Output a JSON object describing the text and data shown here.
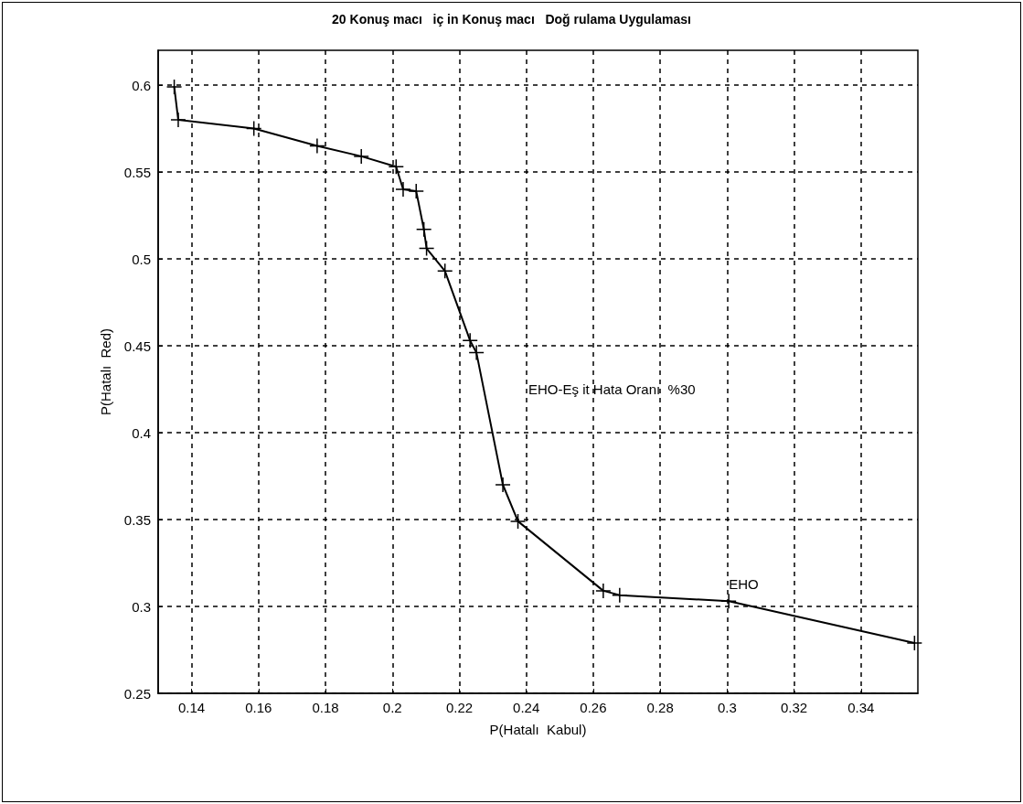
{
  "chart_data": {
    "type": "line",
    "title": "20 Konuş macı   iç in Konuş macı   Doğ rulama Uygulaması",
    "xlabel": "P(Hatalı  Kabul)",
    "ylabel": "P(Hatalı  Red)",
    "x": [
      0.1348,
      0.136,
      0.1586,
      0.1775,
      0.1907,
      0.2011,
      0.2032,
      0.2071,
      0.2094,
      0.2102,
      0.2157,
      0.2232,
      0.2251,
      0.233,
      0.2375,
      0.263,
      0.2679,
      0.3005,
      0.356
    ],
    "series": [
      {
        "color": "#000000",
        "values": [
          0.599,
          0.58,
          0.575,
          0.565,
          0.559,
          0.553,
          0.54,
          0.539,
          0.517,
          0.506,
          0.493,
          0.453,
          0.446,
          0.37,
          0.349,
          0.309,
          0.3065,
          0.303,
          0.279
        ]
      }
    ],
    "xlim": [
      0.13,
      0.357
    ],
    "ylim": [
      0.25,
      0.62
    ],
    "xticks": [
      0.14,
      0.16,
      0.18,
      0.2,
      0.22,
      0.24,
      0.26,
      0.28,
      0.3,
      0.32,
      0.34
    ],
    "yticks": [
      0.25,
      0.3,
      0.35,
      0.4,
      0.45,
      0.5,
      0.55,
      0.6
    ],
    "grid": true,
    "marker": "cross",
    "line_style": "solid",
    "annotations": [
      "EHO-Eş it Hata Oranı  %30",
      {
        "text": "EHO",
        "x": 0.3005,
        "y": 0.303
      }
    ]
  }
}
